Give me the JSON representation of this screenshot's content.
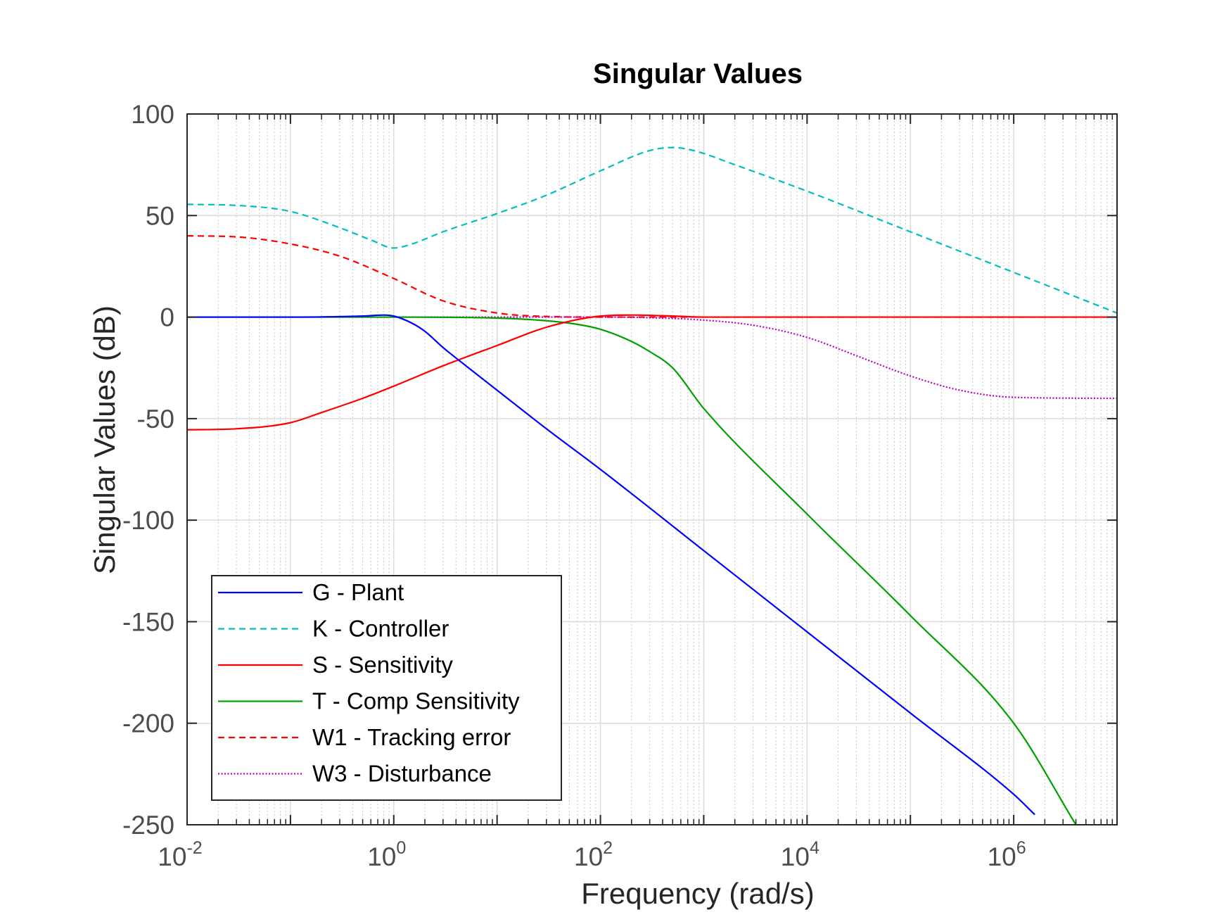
{
  "chart_data": {
    "type": "line",
    "title": "Singular Values",
    "xlabel": "Frequency (rad/s)",
    "ylabel": "Singular Values (dB)",
    "xscale": "log",
    "xlim": [
      0.01,
      10000000
    ],
    "ylim": [
      -250,
      100
    ],
    "grid": true,
    "legend_position": "bottom-left",
    "xticks": [
      {
        "base": "10",
        "exp": "-2",
        "value": 0.01
      },
      {
        "base": "10",
        "exp": "0",
        "value": 1
      },
      {
        "base": "10",
        "exp": "2",
        "value": 100
      },
      {
        "base": "10",
        "exp": "4",
        "value": 10000
      },
      {
        "base": "10",
        "exp": "6",
        "value": 1000000
      }
    ],
    "yticks": [
      "100",
      "50",
      "0",
      "-50",
      "-100",
      "-150",
      "-200",
      "-250"
    ],
    "series": [
      {
        "name": "G - Plant",
        "color": "#0000ff",
        "style": "solid",
        "x": [
          0.01,
          0.1,
          0.5,
          0.8,
          1,
          1.5,
          2,
          3,
          5,
          10,
          30,
          100,
          1000,
          10000,
          100000,
          1000000,
          1600000
        ],
        "y": [
          0,
          0,
          0.5,
          1,
          0.5,
          -3,
          -7,
          -15,
          -24,
          -36,
          -55,
          -75,
          -115,
          -155,
          -195,
          -235,
          -245
        ]
      },
      {
        "name": "K - Controller",
        "color": "#00bfbf",
        "style": "dashed",
        "x": [
          0.01,
          0.03,
          0.1,
          0.3,
          0.6,
          1,
          1.5,
          3,
          10,
          30,
          100,
          300,
          500,
          800,
          2000,
          10000,
          100000,
          1000000,
          10000000
        ],
        "y": [
          55.5,
          55,
          52,
          44,
          38,
          34,
          36,
          42,
          51,
          60,
          72,
          82,
          83.5,
          82,
          75,
          62,
          42,
          22,
          2
        ]
      },
      {
        "name": "S - Sensitivity",
        "color": "#ff0000",
        "style": "solid",
        "x": [
          0.01,
          0.03,
          0.1,
          0.2,
          0.5,
          1,
          3,
          10,
          30,
          100,
          200,
          500,
          1000,
          10000,
          10000000
        ],
        "y": [
          -55.5,
          -55,
          -52,
          -47,
          -40,
          -34,
          -24,
          -14,
          -5,
          0.5,
          1,
          0.5,
          0,
          0,
          0
        ]
      },
      {
        "name": "T - Comp Sensitivity",
        "color": "#00a000",
        "style": "solid",
        "x": [
          0.01,
          1,
          10,
          50,
          100,
          200,
          300,
          500,
          1000,
          10000,
          100000,
          1000000,
          4000000
        ],
        "y": [
          0,
          0,
          -0.5,
          -3,
          -6,
          -12,
          -17,
          -25,
          -45,
          -97,
          -147,
          -200,
          -250
        ]
      },
      {
        "name": "W1 - Tracking error",
        "color": "#ff0000",
        "style": "dashed",
        "x": [
          0.01,
          0.03,
          0.1,
          0.3,
          1,
          3,
          10,
          30,
          100,
          10000000
        ],
        "y": [
          40,
          39.5,
          36,
          30,
          19,
          8,
          2,
          0.3,
          0,
          0
        ]
      },
      {
        "name": "W3 - Disturbance",
        "color": "#bf00bf",
        "style": "dotted",
        "x": [
          0.01,
          100,
          300,
          1000,
          3000,
          10000,
          30000,
          100000,
          300000,
          1000000,
          10000000
        ],
        "y": [
          0,
          0,
          -0.3,
          -1.5,
          -4,
          -10,
          -19,
          -29,
          -36,
          -39.5,
          -40
        ]
      }
    ]
  }
}
